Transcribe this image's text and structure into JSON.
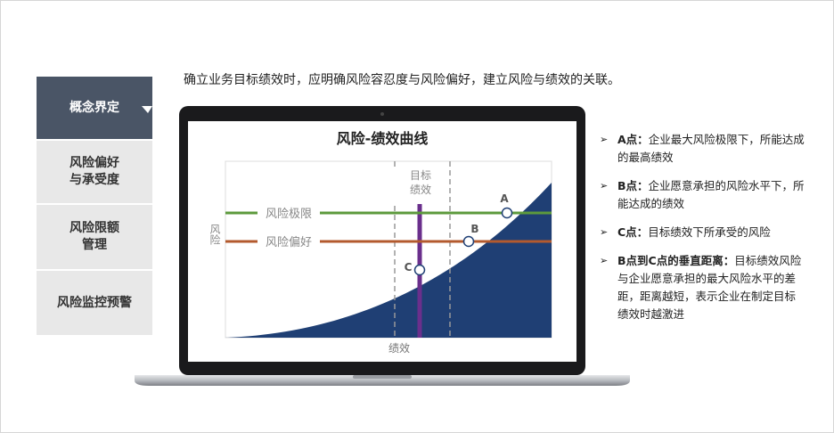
{
  "nav": [
    {
      "lines": [
        "概念界定"
      ]
    },
    {
      "lines": [
        "风险偏好",
        "与承受度"
      ]
    },
    {
      "lines": [
        "风险限额",
        "管理"
      ]
    },
    {
      "lines": [
        "风险监控预警"
      ]
    }
  ],
  "intro": "确立业务目标绩效时，应明确风险容忍度与风险偏好，建立风险与绩效的关联。",
  "figure": {
    "title": "风险-绩效曲线",
    "y_label": "风险",
    "x_label": "绩效",
    "target_label": [
      "目标",
      "绩效"
    ],
    "limit_label": "风险极限",
    "appetite_label": "风险偏好",
    "points": [
      "A",
      "B",
      "C"
    ]
  },
  "notes": [
    {
      "term": "A点：",
      "text": "企业最大风险极限下，所能达成的最高绩效"
    },
    {
      "term": "B点：",
      "text": "企业愿意承担的风险水平下，所能达成的绩效"
    },
    {
      "term": "C点：",
      "text": "目标绩效下所承受的风险"
    },
    {
      "term": "B点到C点的垂直距离：",
      "text": "目标绩效风险与企业愿意承担的最大风险水平的差距，距离越短，表示企业在制定目标绩效时越激进"
    }
  ]
}
